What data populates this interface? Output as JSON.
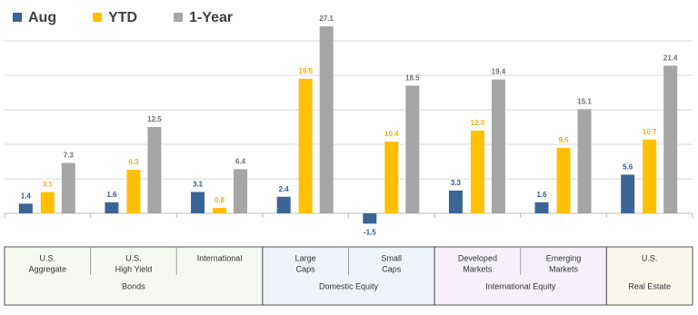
{
  "chart_data": {
    "type": "bar",
    "categories": [
      [
        "U.S.",
        "Aggregate"
      ],
      [
        "U.S.",
        "High Yield"
      ],
      [
        "International"
      ],
      [
        "Large",
        "Caps"
      ],
      [
        "Small",
        "Caps"
      ],
      [
        "Developed",
        "Markets"
      ],
      [
        "Emerging",
        "Markets"
      ],
      [
        "U.S."
      ]
    ],
    "category_groups": [
      "Bonds",
      "Bonds",
      "Bonds",
      "Domestic Equity",
      "Domestic Equity",
      "International Equity",
      "International Equity",
      "Real Estate"
    ],
    "group_backgrounds": [
      "#f6f9f1",
      "#f6f9f1",
      "#f6f9f1",
      "#eef3fa",
      "#eef3fa",
      "#f5f0fa",
      "#f5f0fa",
      "#fbf6ec"
    ],
    "series": [
      {
        "name": "Aug",
        "color": "#3a6594",
        "label_color": "#2f5a8a",
        "values": [
          1.4,
          1.6,
          3.1,
          2.4,
          -1.5,
          3.3,
          1.6,
          5.6
        ],
        "value_labels": [
          "1.4",
          "1.6",
          "3.1",
          "2.4",
          "-1.5",
          "3.3",
          "1.6",
          "5.6"
        ]
      },
      {
        "name": "YTD",
        "color": "#ffc000",
        "label_color": "#f2b400",
        "values": [
          3.1,
          6.3,
          0.8,
          19.5,
          10.4,
          12.0,
          9.5,
          10.7
        ],
        "value_labels": [
          "3.1",
          "6.3",
          "0.8",
          "19.5",
          "10.4",
          "12.0",
          "9.5",
          "10.7"
        ]
      },
      {
        "name": "1-Year",
        "color": "#a6a6a6",
        "label_color": "#6f6f6f",
        "values": [
          7.3,
          12.5,
          6.4,
          27.1,
          18.5,
          19.4,
          15.1,
          21.4
        ],
        "value_labels": [
          "7.3",
          "12.5",
          "6.4",
          "27.1",
          "18.5",
          "19.4",
          "15.1",
          "21.4"
        ]
      }
    ],
    "ylim": [
      -3,
      28
    ],
    "yticks": [
      0,
      5,
      10,
      15,
      20,
      25
    ],
    "tick_labels": false,
    "grid": true,
    "legend": "top-left"
  }
}
